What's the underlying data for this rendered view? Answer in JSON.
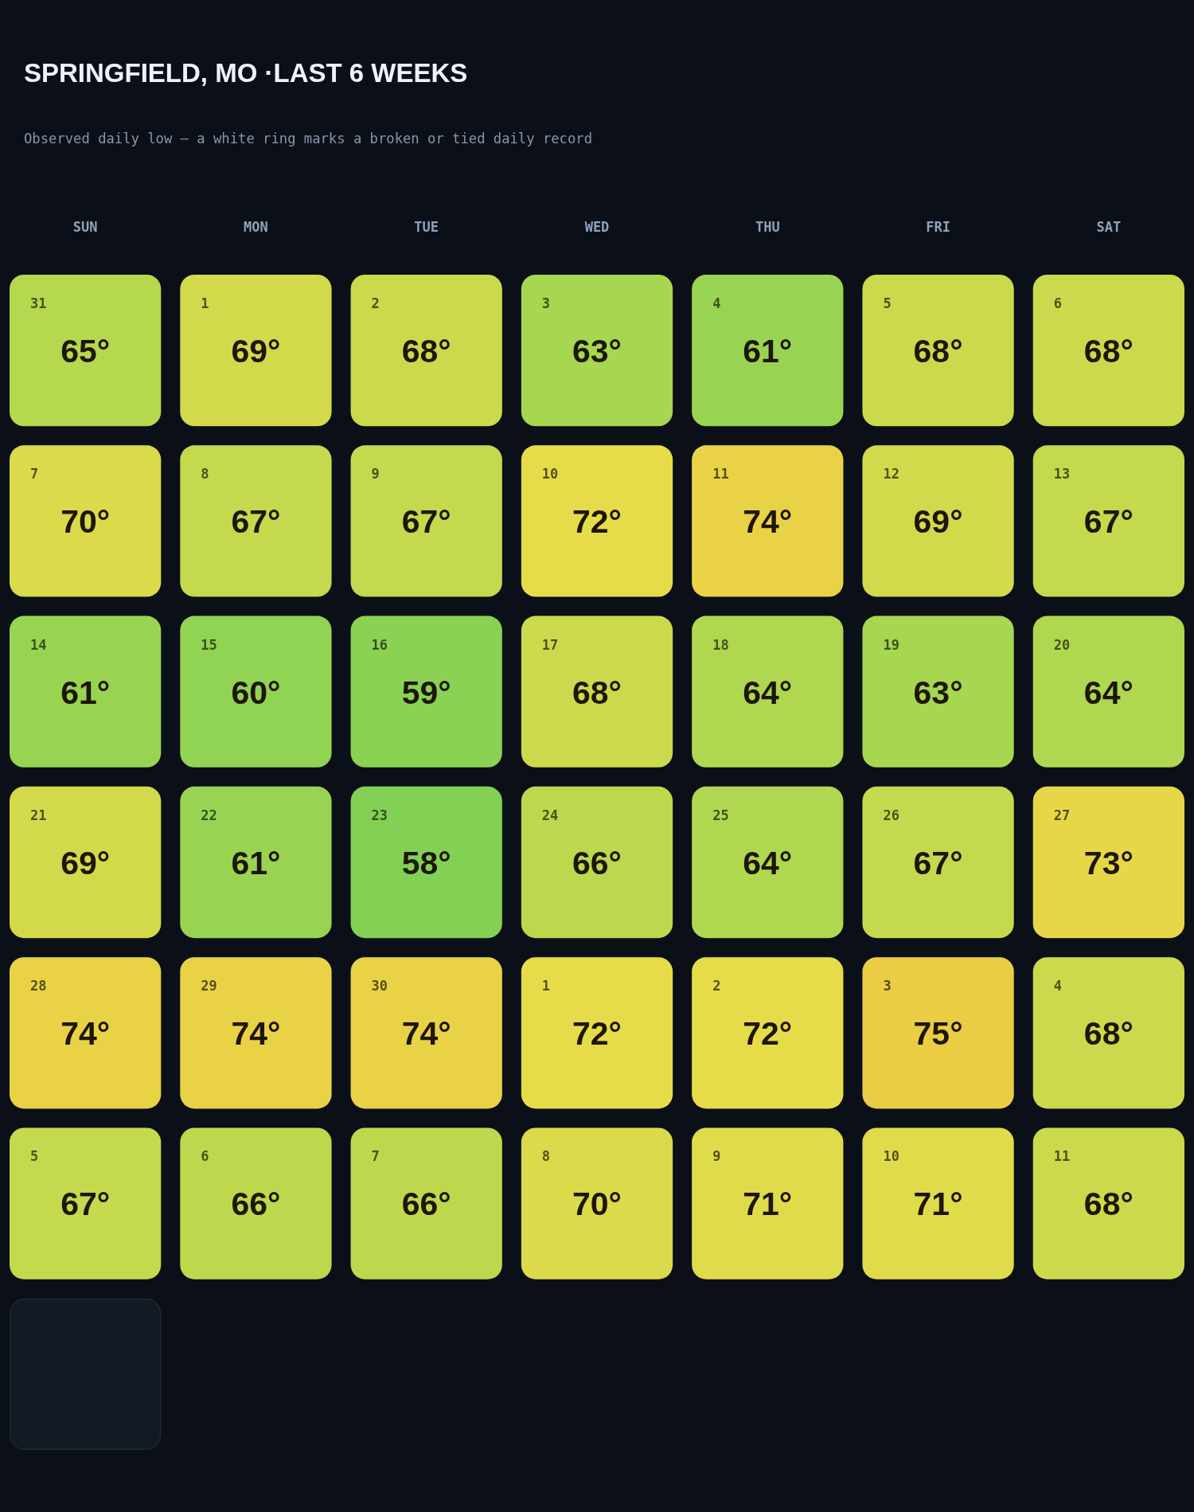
{
  "chart_data": {
    "type": "heatmap",
    "title": "SPRINGFIELD, MO ·LAST 6 WEEKS",
    "subtitle": "Observed daily low — a white ring marks a broken or tied daily record",
    "categories": [
      "SUN",
      "MON",
      "TUE",
      "WED",
      "THU",
      "FRI",
      "SAT"
    ],
    "y_categories": [
      null,
      null,
      null,
      null,
      null,
      null
    ],
    "cells": [
      [
        65,
        69,
        68,
        63,
        61,
        68,
        68
      ],
      [
        70,
        67,
        67,
        72,
        74,
        69,
        67
      ],
      [
        61,
        60,
        59,
        68,
        64,
        63,
        64
      ],
      [
        69,
        61,
        58,
        66,
        64,
        67,
        73
      ],
      [
        74,
        74,
        74,
        72,
        72,
        75,
        68
      ],
      [
        67,
        66,
        66,
        70,
        71,
        71,
        68
      ]
    ],
    "cell_labels": [
      [
        "65°",
        "69°",
        "68°",
        "63°",
        "61°",
        "68°",
        "68°"
      ],
      [
        "70°",
        "67°",
        "67°",
        "72°",
        "74°",
        "69°",
        "67°"
      ],
      [
        "61°",
        "60°",
        "59°",
        "68°",
        "64°",
        "63°",
        "64°"
      ],
      [
        "69°",
        "61°",
        "58°",
        "66°",
        "64°",
        "67°",
        "73°"
      ],
      [
        "74°",
        "74°",
        "74°",
        "72°",
        "72°",
        "75°",
        "68°"
      ],
      [
        "67°",
        "66°",
        "66°",
        "70°",
        "71°",
        "71°",
        "68°"
      ]
    ],
    "annotations": [
      "31",
      "1",
      "2",
      "3",
      "4",
      "5",
      "6",
      "7",
      "8",
      "9",
      "10",
      "11",
      "12",
      "13",
      "14",
      "15",
      "16",
      "17",
      "18",
      "19",
      "20",
      "21",
      "22",
      "23",
      "24",
      "25",
      "26",
      "27",
      "28",
      "29",
      "30",
      "1",
      "2",
      "3",
      "4",
      "5",
      "6",
      "7",
      "8",
      "9",
      "10",
      "11"
    ]
  }
}
